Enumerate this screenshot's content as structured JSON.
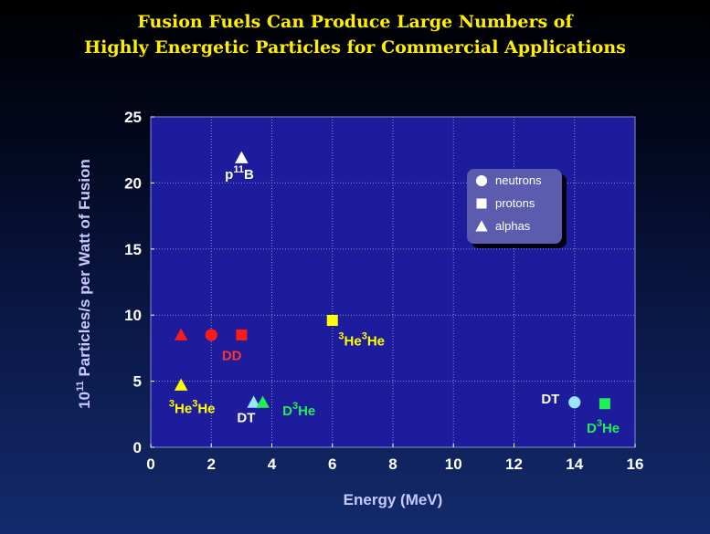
{
  "title_line1": "Fusion Fuels Can Produce Large Numbers of",
  "title_line2": "Highly Energetic Particles for Commercial Applications",
  "chart_data": {
    "type": "scatter",
    "xlabel": "Energy (MeV)",
    "ylabel_prefix": "10",
    "ylabel_exp": "11",
    "ylabel_rest": " Particles/s per Watt of Fusion",
    "xlim": [
      0,
      16
    ],
    "ylim": [
      0,
      25
    ],
    "xticks": [
      0,
      2,
      4,
      6,
      8,
      10,
      12,
      14,
      16
    ],
    "yticks": [
      0,
      5,
      10,
      15,
      20,
      25
    ],
    "grid": true,
    "legend_position": "upper-right",
    "legend": [
      {
        "label": "neutrons",
        "marker": "circle"
      },
      {
        "label": "protons",
        "marker": "square"
      },
      {
        "label": "alphas",
        "marker": "triangle"
      }
    ],
    "points": [
      {
        "x": 3.0,
        "y": 21.9,
        "marker": "triangle",
        "color": "#ffffff"
      },
      {
        "x": 1.0,
        "y": 8.5,
        "marker": "triangle",
        "color": "#ff1a1a"
      },
      {
        "x": 2.0,
        "y": 8.5,
        "marker": "circle",
        "color": "#ff1a1a"
      },
      {
        "x": 3.0,
        "y": 8.5,
        "marker": "square",
        "color": "#ff1a1a"
      },
      {
        "x": 6.0,
        "y": 9.6,
        "marker": "square",
        "color": "#ffff00"
      },
      {
        "x": 1.0,
        "y": 4.7,
        "marker": "triangle",
        "color": "#ffff00"
      },
      {
        "x": 3.4,
        "y": 3.4,
        "marker": "triangle",
        "color": "#99e6ff"
      },
      {
        "x": 3.7,
        "y": 3.4,
        "marker": "triangle",
        "color": "#22ee55"
      },
      {
        "x": 14.0,
        "y": 3.4,
        "marker": "circle",
        "color": "#99e6ff"
      },
      {
        "x": 15.0,
        "y": 3.3,
        "marker": "square",
        "color": "#22ee55"
      }
    ],
    "annotations": [
      {
        "pre": "p",
        "sup": "11",
        "mid": "B",
        "sup2": "",
        "post": "",
        "x": 2.45,
        "y": 20.3,
        "color": "#ffffff"
      },
      {
        "pre": "",
        "sup": "",
        "mid": "DD",
        "sup2": "",
        "post": "",
        "x": 2.35,
        "y": 6.6,
        "color": "#ff3333"
      },
      {
        "pre": "",
        "sup": "3",
        "mid": "He",
        "sup2": "3",
        "post": "He",
        "x": 6.2,
        "y": 7.7,
        "color": "#ffff00"
      },
      {
        "pre": "",
        "sup": "3",
        "mid": "He",
        "sup2": "3",
        "post": "He",
        "x": 0.6,
        "y": 2.6,
        "color": "#ffff00"
      },
      {
        "pre": "",
        "sup": "",
        "mid": "DT",
        "sup2": "",
        "post": "",
        "x": 2.85,
        "y": 1.9,
        "color": "#ffffff"
      },
      {
        "pre": "D",
        "sup": "3",
        "mid": "He",
        "sup2": "",
        "post": "",
        "x": 4.35,
        "y": 2.4,
        "color": "#22ee55"
      },
      {
        "pre": "",
        "sup": "",
        "mid": "DT",
        "sup2": "",
        "post": "",
        "x": 12.9,
        "y": 3.3,
        "color": "#ffffff"
      },
      {
        "pre": "D",
        "sup": "3",
        "mid": "He",
        "sup2": "",
        "post": "",
        "x": 14.4,
        "y": 1.1,
        "color": "#22ee55"
      }
    ]
  }
}
